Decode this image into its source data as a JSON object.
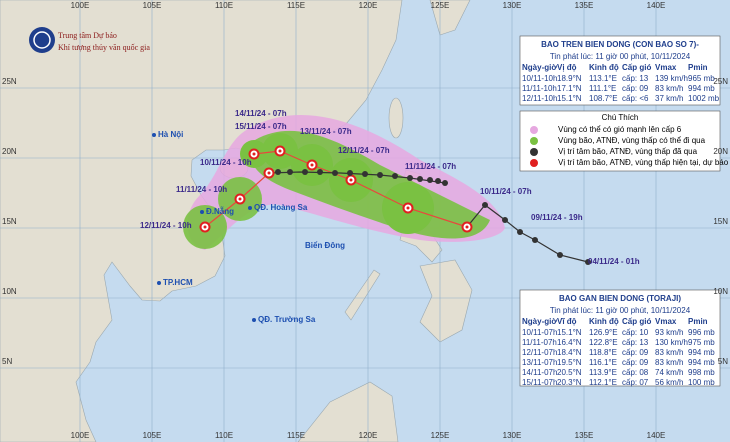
{
  "header": {
    "agency": [
      "Trung tâm Dự báo",
      "Khí tượng thủy văn quốc gia"
    ]
  },
  "map": {
    "longitudes": [
      "100E",
      "105E",
      "110E",
      "115E",
      "120E",
      "125E",
      "130E",
      "135E",
      "140E"
    ],
    "latitudes": [
      "25N",
      "20N",
      "15N",
      "10N",
      "5N"
    ],
    "sea": "Biển Đông",
    "places": [
      "Hà Nội",
      "Đ.Nẵng",
      "QĐ. Hoàng Sa",
      "TP.HCM",
      "QĐ. Trường Sa"
    ],
    "track_labels": [
      "14/11/24 - 07h",
      "15/11/24 - 07h",
      "13/11/24 - 07h",
      "12/11/24 - 07h",
      "10/11/24 - 10h",
      "11/11/24 - 07h",
      "10/11/24 - 07h",
      "11/11/24 - 10h",
      "09/11/24 - 19h",
      "12/11/24 - 10h",
      "04/11/24 - 01h"
    ]
  },
  "legend": {
    "title": "Chú Thích",
    "items": [
      "Vùng có thể có gió mạnh lên cấp 6",
      "Vùng bão, ATNĐ, vùng thấp có thể đi qua",
      "Vị trí tâm bão, ATNĐ, vùng thấp đã qua",
      "Vị trí tâm bão, ATNĐ, vùng thấp hiện tại, dự báo"
    ]
  },
  "tables": [
    {
      "title": "BAO TREN BIEN DONG (CON BAO SO 7)-",
      "issued": "Tin phát lúc: 11 giờ 00 phút, 10/11/2024",
      "columns": [
        "Ngày-giờ",
        "Vị độ",
        "Kinh độ",
        "Cấp gió",
        "Vmax",
        "Pmin"
      ],
      "rows": [
        [
          "10/11-10h",
          "18.9°N",
          "113.1°E",
          "cấp: 13",
          "139 km/h",
          "965 mb"
        ],
        [
          "11/11-10h",
          "17.1°N",
          "111.1°E",
          "cấp: 09",
          "83 km/h",
          "994 mb"
        ],
        [
          "12/11-10h",
          "15.1°N",
          "108.7°E",
          "cấp: <6",
          "37 km/h",
          "1002 mb"
        ]
      ]
    },
    {
      "title": "BAO GAN BIEN DONG (TORAJI)",
      "issued": "Tin phát lúc: 11 giờ 00 phút, 10/11/2024",
      "columns": [
        "Ngày-giờ",
        "Vĩ độ",
        "Kinh độ",
        "Cấp gió",
        "Vmax",
        "Pmin"
      ],
      "rows": [
        [
          "10/11-07h",
          "15.1°N",
          "126.9°E",
          "cấp: 10",
          "93 km/h",
          "996 mb"
        ],
        [
          "11/11-07h",
          "16.4°N",
          "122.8°E",
          "cấp: 13",
          "130 km/h",
          "975 mb"
        ],
        [
          "12/11-07h",
          "18.4°N",
          "118.8°E",
          "cấp: 09",
          "83 km/h",
          "994 mb"
        ],
        [
          "13/11-07h",
          "19.5°N",
          "116.1°E",
          "cấp: 09",
          "83 km/h",
          "994 mb"
        ],
        [
          "14/11-07h",
          "20.5°N",
          "113.9°E",
          "cấp: 08",
          "74 km/h",
          "998 mb"
        ],
        [
          "15/11-07h",
          "20.3°N",
          "112.1°E",
          "cấp: 07",
          "56 km/h",
          "100 mb"
        ]
      ]
    }
  ]
}
